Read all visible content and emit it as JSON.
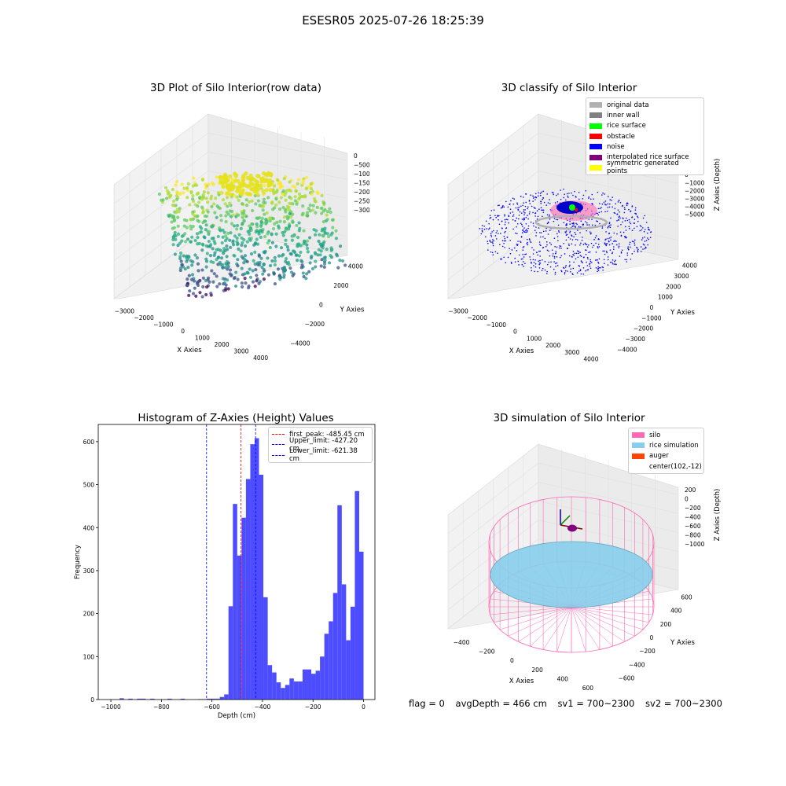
{
  "suptitle": "ESESR05 2025-07-26 18:25:39",
  "status": {
    "flag": "flag = 0",
    "avg_depth": "avgDepth = 466 cm",
    "sv1": "sv1 = 700~2300",
    "sv2": "sv2 = 700~2300"
  },
  "chart_data": [
    {
      "type": "scatter",
      "projection": "3d",
      "title": "3D Plot of Silo Interior(row data)",
      "xlabel": "X Axies",
      "ylabel": "Y Axies",
      "zlabel": "Z Axies (Depth)",
      "xticks": [
        "−3000",
        "−2000",
        "−1000",
        "0",
        "1000",
        "2000",
        "3000",
        "4000"
      ],
      "yticks": [
        "−4000",
        "−2000",
        "0",
        "2000",
        "4000"
      ],
      "zticks": [
        "0",
        "−500",
        "−1000",
        "−1500",
        "−2000",
        "−2500",
        "−3000"
      ],
      "colormap": "viridis",
      "colors": {
        "low": "#440154",
        "mid": "#21918c",
        "high": "#fde725"
      }
    },
    {
      "type": "scatter",
      "projection": "3d",
      "title": "3D classify of Silo Interior",
      "xlabel": "X Axies",
      "ylabel": "Y Axies",
      "zlabel": "Z Axies (Depth)",
      "xticks": [
        "−3000",
        "−2000",
        "−1000",
        "0",
        "1000",
        "2000",
        "3000",
        "4000"
      ],
      "yticks": [
        "−4000",
        "−3000",
        "−2000",
        "−1000",
        "0",
        "1000",
        "2000",
        "3000",
        "4000"
      ],
      "zticks": [
        "2000",
        "1000",
        "0",
        "−1000",
        "−2000",
        "−3000",
        "−4000",
        "−5000"
      ],
      "legend": [
        {
          "label": "original data",
          "color": "#b0b0b0"
        },
        {
          "label": "inner wall",
          "color": "#808080"
        },
        {
          "label": "rice surface",
          "color": "#00ff00"
        },
        {
          "label": "obstacle",
          "color": "#ff0000"
        },
        {
          "label": "noise",
          "color": "#0000ff"
        },
        {
          "label": "interpolated rice surface",
          "color": "#800080"
        },
        {
          "label": "symmetric generated points",
          "color": "#ffff00"
        }
      ]
    },
    {
      "type": "bar",
      "title": "Histogram of Z-Axies (Height) Values",
      "xlabel": "Depth (cm)",
      "ylabel": "Frequency",
      "xlim": [
        -1050,
        45
      ],
      "ylim": [
        0,
        640
      ],
      "xticks": [
        -1000,
        -800,
        -600,
        -400,
        -200,
        0
      ],
      "xtick_labels": [
        "−1000",
        "−800",
        "−600",
        "−400",
        "−200",
        "0"
      ],
      "yticks": [
        0,
        100,
        200,
        300,
        400,
        500,
        600
      ],
      "bar_color": "#4d4dff",
      "bins": [
        {
          "x0": -1000,
          "x1": -986,
          "v": 0
        },
        {
          "x0": -972,
          "x1": -958,
          "v": 3
        },
        {
          "x0": -944,
          "x1": -930,
          "v": 2
        },
        {
          "x0": -916,
          "x1": -902,
          "v": 2
        },
        {
          "x0": -902,
          "x1": -888,
          "v": 2
        },
        {
          "x0": -874,
          "x1": -860,
          "v": 2
        },
        {
          "x0": -818,
          "x1": -804,
          "v": 2
        },
        {
          "x0": -776,
          "x1": -762,
          "v": 2
        },
        {
          "x0": -720,
          "x1": -706,
          "v": 1
        },
        {
          "x0": -706,
          "x1": -692,
          "v": 1
        },
        {
          "x0": -692,
          "x1": -678,
          "v": 2
        },
        {
          "x0": -678,
          "x1": -664,
          "v": 2
        },
        {
          "x0": -664,
          "x1": -650,
          "v": 2
        },
        {
          "x0": -650,
          "x1": -636,
          "v": 6
        },
        {
          "x0": -636,
          "x1": -622,
          "v": 12
        },
        {
          "x0": -622,
          "x1": -608,
          "v": 217
        },
        {
          "x0": -608,
          "x1": -594,
          "v": 455
        },
        {
          "x0": -594,
          "x1": -580,
          "v": 335
        },
        {
          "x0": -580,
          "x1": -566,
          "v": 423
        },
        {
          "x0": -566,
          "x1": -552,
          "v": 513
        },
        {
          "x0": -552,
          "x1": -538,
          "v": 594
        },
        {
          "x0": -538,
          "x1": -524,
          "v": 608
        },
        {
          "x0": -524,
          "x1": -510,
          "v": 523
        },
        {
          "x0": -510,
          "x1": -496,
          "v": 238
        },
        {
          "x0": -496,
          "x1": -482,
          "v": 80
        },
        {
          "x0": -482,
          "x1": -468,
          "v": 63
        },
        {
          "x0": -468,
          "x1": -454,
          "v": 40
        },
        {
          "x0": -454,
          "x1": -440,
          "v": 27
        },
        {
          "x0": -440,
          "x1": -426,
          "v": 34
        },
        {
          "x0": -426,
          "x1": -412,
          "v": 49
        },
        {
          "x0": -412,
          "x1": -398,
          "v": 42
        },
        {
          "x0": -398,
          "x1": -384,
          "v": 42
        },
        {
          "x0": -384,
          "x1": -370,
          "v": 70
        },
        {
          "x0": -370,
          "x1": -356,
          "v": 70
        },
        {
          "x0": -356,
          "x1": -342,
          "v": 60
        },
        {
          "x0": -342,
          "x1": -328,
          "v": 67
        },
        {
          "x0": -328,
          "x1": -314,
          "v": 100
        },
        {
          "x0": -314,
          "x1": -300,
          "v": 153
        },
        {
          "x0": -300,
          "x1": -286,
          "v": 182
        },
        {
          "x0": -286,
          "x1": -272,
          "v": 248
        },
        {
          "x0": -272,
          "x1": -258,
          "v": 452
        },
        {
          "x0": -258,
          "x1": -244,
          "v": 268
        },
        {
          "x0": -244,
          "x1": -230,
          "v": 138
        },
        {
          "x0": -230,
          "x1": -216,
          "v": 216
        },
        {
          "x0": -216,
          "x1": -202,
          "v": 485
        },
        {
          "x0": -202,
          "x1": -188,
          "v": 344
        }
      ],
      "vlines": [
        {
          "x": -485.45,
          "label": "first_peak: -485.45 cm",
          "color": "#ff0000"
        },
        {
          "x": -427.2,
          "label": "Upper_limit: -427.20 cm",
          "color": "#0000ff"
        },
        {
          "x": -621.38,
          "label": "Lower_limit: -621.38 cm",
          "color": "#0000ff"
        }
      ]
    },
    {
      "type": "surface",
      "projection": "3d",
      "title": "3D simulation of Silo Interior",
      "xlabel": "X Axies",
      "ylabel": "Y Axies",
      "zlabel": "Z Axies (Depth)",
      "xticks": [
        "−400",
        "−200",
        "0",
        "200",
        "400",
        "600"
      ],
      "yticks": [
        "−600",
        "−400",
        "−200",
        "0",
        "200",
        "400",
        "600"
      ],
      "zticks": [
        "200",
        "0",
        "−200",
        "−400",
        "−600",
        "−800",
        "−1000"
      ],
      "legend": [
        {
          "label": "silo",
          "color": "#ff69b4"
        },
        {
          "label": "rice simulation",
          "color": "#87ceeb"
        },
        {
          "label": "auger",
          "color": "#ff4500"
        },
        {
          "label": "center(102,-12)",
          "color": ""
        }
      ]
    }
  ]
}
